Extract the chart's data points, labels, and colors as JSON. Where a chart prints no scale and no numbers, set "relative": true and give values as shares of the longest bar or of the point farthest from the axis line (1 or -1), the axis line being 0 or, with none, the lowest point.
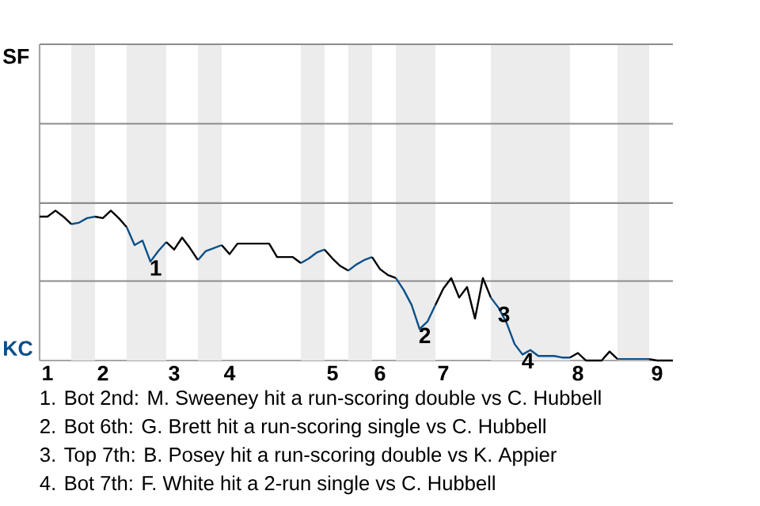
{
  "chart_data": {
    "type": "line",
    "relative": true,
    "categories": [
      null,
      "1",
      null,
      null,
      null,
      null,
      null,
      null,
      "2",
      null,
      null,
      null,
      null,
      null,
      null,
      null,
      null,
      "3",
      null,
      null,
      null,
      null,
      null,
      null,
      "4",
      null,
      null,
      null,
      null,
      null,
      null,
      null,
      null,
      null,
      null,
      null,
      null,
      "5",
      null,
      null,
      null,
      null,
      null,
      "6",
      null,
      null,
      null,
      null,
      null,
      null,
      null,
      "7",
      null,
      null,
      null,
      null,
      null,
      null,
      null,
      null,
      null,
      null,
      null,
      null,
      null,
      null,
      null,
      null,
      "8",
      null,
      null,
      null,
      null,
      null,
      null,
      null,
      null,
      null,
      "9",
      null,
      null
    ],
    "marker": "none",
    "line_style": "solid",
    "ref_lines": [
      {
        "axis": "y",
        "value": 0.53,
        "color": "#8c8c8c"
      },
      {
        "axis": "y",
        "value": 1.05,
        "color": "#8c8c8c"
      },
      {
        "axis": "y",
        "value": 1.58,
        "color": "#8c8c8c"
      },
      {
        "axis": "y",
        "value": 2.11,
        "color": "#8c8c8c"
      }
    ],
    "series": [
      {
        "color": "#000000",
        "values": [
          0.96,
          0.96,
          1,
          0.96,
          0.91,
          null,
          null,
          null,
          null,
          null,
          null,
          null,
          null,
          null,
          null,
          null,
          null,
          null,
          null,
          null,
          null,
          null,
          null,
          null,
          null,
          null,
          null,
          null,
          null,
          null,
          null,
          null,
          null,
          null,
          null,
          null,
          null,
          null,
          null,
          null,
          null,
          null,
          null,
          null,
          null,
          null,
          null,
          null,
          null,
          null,
          null,
          null,
          null,
          null,
          null,
          null,
          null,
          null,
          null,
          null,
          null,
          null,
          null,
          null,
          null,
          null,
          null,
          null,
          null,
          null,
          null,
          null,
          null,
          null,
          null,
          null,
          null,
          null,
          null,
          null,
          null
        ]
      },
      {
        "color": "#0b4f8a",
        "values": [
          null,
          null,
          null,
          null,
          0.91,
          0.92,
          0.95,
          0.96,
          null,
          null,
          null,
          null,
          null,
          null,
          null,
          null,
          null,
          null,
          null,
          null,
          null,
          null,
          null,
          null,
          null,
          null,
          null,
          null,
          null,
          null,
          null,
          null,
          null,
          null,
          null,
          null,
          null,
          null,
          null,
          null,
          null,
          null,
          null,
          null,
          null,
          null,
          null,
          null,
          null,
          null,
          null,
          null,
          null,
          null,
          null,
          null,
          null,
          null,
          null,
          null,
          null,
          null,
          null,
          null,
          null,
          null,
          null,
          null,
          null,
          null,
          null,
          null,
          null,
          null,
          null,
          null,
          null,
          null,
          null,
          null,
          null
        ]
      },
      {
        "color": "#000000",
        "values": [
          null,
          null,
          null,
          null,
          null,
          null,
          null,
          0.96,
          0.95,
          1,
          0.95,
          0.89,
          null,
          null,
          null,
          null,
          null,
          null,
          null,
          null,
          null,
          null,
          null,
          null,
          null,
          null,
          null,
          null,
          null,
          null,
          null,
          null,
          null,
          null,
          null,
          null,
          null,
          null,
          null,
          null,
          null,
          null,
          null,
          null,
          null,
          null,
          null,
          null,
          null,
          null,
          null,
          null,
          null,
          null,
          null,
          null,
          null,
          null,
          null,
          null,
          null,
          null,
          null,
          null,
          null,
          null,
          null,
          null,
          null,
          null,
          null,
          null,
          null,
          null,
          null,
          null,
          null,
          null,
          null,
          null,
          null
        ]
      },
      {
        "color": "#0b4f8a",
        "values": [
          null,
          null,
          null,
          null,
          null,
          null,
          null,
          null,
          null,
          null,
          null,
          0.89,
          0.77,
          0.8,
          0.66,
          0.73,
          0.79,
          null,
          null,
          null,
          null,
          null,
          null,
          null,
          null,
          null,
          null,
          null,
          null,
          null,
          null,
          null,
          null,
          null,
          null,
          null,
          null,
          null,
          null,
          null,
          null,
          null,
          null,
          null,
          null,
          null,
          null,
          null,
          null,
          null,
          null,
          null,
          null,
          null,
          null,
          null,
          null,
          null,
          null,
          null,
          null,
          null,
          null,
          null,
          null,
          null,
          null,
          null,
          null,
          null,
          null,
          null,
          null,
          null,
          null,
          null,
          null,
          null,
          null,
          null,
          null
        ]
      },
      {
        "color": "#000000",
        "values": [
          null,
          null,
          null,
          null,
          null,
          null,
          null,
          null,
          null,
          null,
          null,
          null,
          null,
          null,
          null,
          null,
          0.79,
          0.74,
          0.82,
          0.75,
          0.67,
          null,
          null,
          null,
          null,
          null,
          null,
          null,
          null,
          null,
          null,
          null,
          null,
          null,
          null,
          null,
          null,
          null,
          null,
          null,
          null,
          null,
          null,
          null,
          null,
          null,
          null,
          null,
          null,
          null,
          null,
          null,
          null,
          null,
          null,
          null,
          null,
          null,
          null,
          null,
          null,
          null,
          null,
          null,
          null,
          null,
          null,
          null,
          null,
          null,
          null,
          null,
          null,
          null,
          null,
          null,
          null,
          null,
          null,
          null,
          null
        ]
      },
      {
        "color": "#0b4f8a",
        "values": [
          null,
          null,
          null,
          null,
          null,
          null,
          null,
          null,
          null,
          null,
          null,
          null,
          null,
          null,
          null,
          null,
          null,
          null,
          null,
          null,
          0.67,
          0.73,
          0.75,
          0.77,
          null,
          null,
          null,
          null,
          null,
          null,
          null,
          null,
          null,
          null,
          null,
          null,
          null,
          null,
          null,
          null,
          null,
          null,
          null,
          null,
          null,
          null,
          null,
          null,
          null,
          null,
          null,
          null,
          null,
          null,
          null,
          null,
          null,
          null,
          null,
          null,
          null,
          null,
          null,
          null,
          null,
          null,
          null,
          null,
          null,
          null,
          null,
          null,
          null,
          null,
          null,
          null,
          null,
          null,
          null,
          null,
          null
        ]
      },
      {
        "color": "#000000",
        "values": [
          null,
          null,
          null,
          null,
          null,
          null,
          null,
          null,
          null,
          null,
          null,
          null,
          null,
          null,
          null,
          null,
          null,
          null,
          null,
          null,
          null,
          null,
          null,
          0.77,
          0.71,
          0.78,
          0.78,
          0.78,
          0.78,
          0.78,
          0.69,
          0.69,
          0.69,
          0.65,
          null,
          null,
          null,
          null,
          null,
          null,
          null,
          null,
          null,
          null,
          null,
          null,
          null,
          null,
          null,
          null,
          null,
          null,
          null,
          null,
          null,
          null,
          null,
          null,
          null,
          null,
          null,
          null,
          null,
          null,
          null,
          null,
          null,
          null,
          null,
          null,
          null,
          null,
          null,
          null,
          null,
          null,
          null,
          null,
          null,
          null,
          null
        ]
      },
      {
        "color": "#0b4f8a",
        "values": [
          null,
          null,
          null,
          null,
          null,
          null,
          null,
          null,
          null,
          null,
          null,
          null,
          null,
          null,
          null,
          null,
          null,
          null,
          null,
          null,
          null,
          null,
          null,
          null,
          null,
          null,
          null,
          null,
          null,
          null,
          null,
          null,
          null,
          0.65,
          0.68,
          0.72,
          0.74,
          null,
          null,
          null,
          null,
          null,
          null,
          null,
          null,
          null,
          null,
          null,
          null,
          null,
          null,
          null,
          null,
          null,
          null,
          null,
          null,
          null,
          null,
          null,
          null,
          null,
          null,
          null,
          null,
          null,
          null,
          null,
          null,
          null,
          null,
          null,
          null,
          null,
          null,
          null,
          null,
          null,
          null,
          null,
          null
        ]
      },
      {
        "color": "#000000",
        "values": [
          null,
          null,
          null,
          null,
          null,
          null,
          null,
          null,
          null,
          null,
          null,
          null,
          null,
          null,
          null,
          null,
          null,
          null,
          null,
          null,
          null,
          null,
          null,
          null,
          null,
          null,
          null,
          null,
          null,
          null,
          null,
          null,
          null,
          null,
          null,
          null,
          0.74,
          0.68,
          0.63,
          0.6,
          null,
          null,
          null,
          null,
          null,
          null,
          null,
          null,
          null,
          null,
          null,
          null,
          null,
          null,
          null,
          null,
          null,
          null,
          null,
          null,
          null,
          null,
          null,
          null,
          null,
          null,
          null,
          null,
          null,
          null,
          null,
          null,
          null,
          null,
          null,
          null,
          null,
          null,
          null,
          null,
          null
        ]
      },
      {
        "color": "#0b4f8a",
        "values": [
          null,
          null,
          null,
          null,
          null,
          null,
          null,
          null,
          null,
          null,
          null,
          null,
          null,
          null,
          null,
          null,
          null,
          null,
          null,
          null,
          null,
          null,
          null,
          null,
          null,
          null,
          null,
          null,
          null,
          null,
          null,
          null,
          null,
          null,
          null,
          null,
          null,
          null,
          null,
          0.6,
          0.64,
          0.67,
          0.69,
          null,
          null,
          null,
          null,
          null,
          null,
          null,
          null,
          null,
          null,
          null,
          null,
          null,
          null,
          null,
          null,
          null,
          null,
          null,
          null,
          null,
          null,
          null,
          null,
          null,
          null,
          null,
          null,
          null,
          null,
          null,
          null,
          null,
          null,
          null,
          null,
          null,
          null
        ]
      },
      {
        "color": "#000000",
        "values": [
          null,
          null,
          null,
          null,
          null,
          null,
          null,
          null,
          null,
          null,
          null,
          null,
          null,
          null,
          null,
          null,
          null,
          null,
          null,
          null,
          null,
          null,
          null,
          null,
          null,
          null,
          null,
          null,
          null,
          null,
          null,
          null,
          null,
          null,
          null,
          null,
          null,
          null,
          null,
          null,
          null,
          null,
          0.69,
          0.61,
          0.57,
          0.55,
          null,
          null,
          null,
          null,
          null,
          null,
          null,
          null,
          null,
          null,
          null,
          null,
          null,
          null,
          null,
          null,
          null,
          null,
          null,
          null,
          null,
          null,
          null,
          null,
          null,
          null,
          null,
          null,
          null,
          null,
          null,
          null,
          null,
          null,
          null
        ]
      },
      {
        "color": "#0b4f8a",
        "values": [
          null,
          null,
          null,
          null,
          null,
          null,
          null,
          null,
          null,
          null,
          null,
          null,
          null,
          null,
          null,
          null,
          null,
          null,
          null,
          null,
          null,
          null,
          null,
          null,
          null,
          null,
          null,
          null,
          null,
          null,
          null,
          null,
          null,
          null,
          null,
          null,
          null,
          null,
          null,
          null,
          null,
          null,
          null,
          null,
          null,
          0.55,
          0.47,
          0.37,
          0.21,
          0.26,
          0.37,
          null,
          null,
          null,
          null,
          null,
          null,
          null,
          null,
          null,
          null,
          null,
          null,
          null,
          null,
          null,
          null,
          null,
          null,
          null,
          null,
          null,
          null,
          null,
          null,
          null,
          null,
          null,
          null,
          null,
          null
        ]
      },
      {
        "color": "#000000",
        "values": [
          null,
          null,
          null,
          null,
          null,
          null,
          null,
          null,
          null,
          null,
          null,
          null,
          null,
          null,
          null,
          null,
          null,
          null,
          null,
          null,
          null,
          null,
          null,
          null,
          null,
          null,
          null,
          null,
          null,
          null,
          null,
          null,
          null,
          null,
          null,
          null,
          null,
          null,
          null,
          null,
          null,
          null,
          null,
          null,
          null,
          null,
          null,
          null,
          null,
          null,
          0.37,
          0.48,
          0.55,
          0.42,
          0.49,
          0.28,
          0.55,
          0.42,
          null,
          null,
          null,
          null,
          null,
          null,
          null,
          null,
          null,
          null,
          null,
          null,
          null,
          null,
          null,
          null,
          null,
          null,
          null,
          null,
          null,
          null,
          null
        ]
      },
      {
        "color": "#0b4f8a",
        "values": [
          null,
          null,
          null,
          null,
          null,
          null,
          null,
          null,
          null,
          null,
          null,
          null,
          null,
          null,
          null,
          null,
          null,
          null,
          null,
          null,
          null,
          null,
          null,
          null,
          null,
          null,
          null,
          null,
          null,
          null,
          null,
          null,
          null,
          null,
          null,
          null,
          null,
          null,
          null,
          null,
          null,
          null,
          null,
          null,
          null,
          null,
          null,
          null,
          null,
          null,
          null,
          null,
          null,
          null,
          null,
          null,
          null,
          0.42,
          0.35,
          0.25,
          0.11,
          0.04,
          0.07,
          0.03,
          0.03,
          0.03,
          0.02,
          0.02,
          null,
          null,
          null,
          null,
          null,
          null,
          null,
          null,
          null,
          null,
          null,
          null,
          null
        ]
      },
      {
        "color": "#000000",
        "values": [
          null,
          null,
          null,
          null,
          null,
          null,
          null,
          null,
          null,
          null,
          null,
          null,
          null,
          null,
          null,
          null,
          null,
          null,
          null,
          null,
          null,
          null,
          null,
          null,
          null,
          null,
          null,
          null,
          null,
          null,
          null,
          null,
          null,
          null,
          null,
          null,
          null,
          null,
          null,
          null,
          null,
          null,
          null,
          null,
          null,
          null,
          null,
          null,
          null,
          null,
          null,
          null,
          null,
          null,
          null,
          null,
          null,
          null,
          null,
          null,
          null,
          null,
          null,
          null,
          null,
          null,
          null,
          0.02,
          0.05,
          0,
          0,
          0,
          0.06,
          0.01,
          null,
          null,
          null,
          null,
          null,
          null,
          null
        ]
      },
      {
        "color": "#0b4f8a",
        "values": [
          null,
          null,
          null,
          null,
          null,
          null,
          null,
          null,
          null,
          null,
          null,
          null,
          null,
          null,
          null,
          null,
          null,
          null,
          null,
          null,
          null,
          null,
          null,
          null,
          null,
          null,
          null,
          null,
          null,
          null,
          null,
          null,
          null,
          null,
          null,
          null,
          null,
          null,
          null,
          null,
          null,
          null,
          null,
          null,
          null,
          null,
          null,
          null,
          null,
          null,
          null,
          null,
          null,
          null,
          null,
          null,
          null,
          null,
          null,
          null,
          null,
          null,
          null,
          null,
          null,
          null,
          null,
          null,
          null,
          null,
          null,
          null,
          null,
          0.01,
          0.01,
          0.01,
          0.01,
          0.01,
          null,
          null,
          null
        ]
      },
      {
        "color": "#000000",
        "values": [
          null,
          null,
          null,
          null,
          null,
          null,
          null,
          null,
          null,
          null,
          null,
          null,
          null,
          null,
          null,
          null,
          null,
          null,
          null,
          null,
          null,
          null,
          null,
          null,
          null,
          null,
          null,
          null,
          null,
          null,
          null,
          null,
          null,
          null,
          null,
          null,
          null,
          null,
          null,
          null,
          null,
          null,
          null,
          null,
          null,
          null,
          null,
          null,
          null,
          null,
          null,
          null,
          null,
          null,
          null,
          null,
          null,
          null,
          null,
          null,
          null,
          null,
          null,
          null,
          null,
          null,
          null,
          null,
          null,
          null,
          null,
          null,
          null,
          null,
          null,
          null,
          null,
          0.01,
          0,
          0,
          0
        ]
      }
    ],
    "annotations": [
      {
        "text": "1",
        "y": 0.66
      },
      {
        "text": "2",
        "y": 0.21
      },
      {
        "text": "3",
        "y": 0.35
      },
      {
        "text": "4",
        "y": 0.04
      },
      "SF",
      "KC",
      "1. Bot 2nd: M. Sweeney hit a run-scoring double vs C. Hubbell",
      "2. Bot 6th: G. Brett hit a run-scoring single vs C. Hubbell",
      "3. Top 7th: B. Posey hit a run-scoring double vs K. Appier",
      "4. Bot 7th: F. White hit a 2-run single vs C. Hubbell"
    ]
  }
}
